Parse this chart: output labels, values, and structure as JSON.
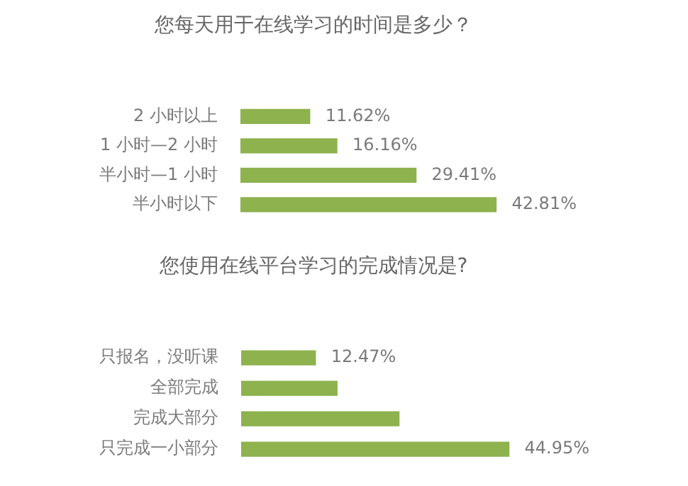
{
  "chart_data": [
    {
      "type": "bar",
      "orientation": "horizontal",
      "title": "您每天用于在线学习的时间是多少？",
      "categories": [
        "2 小时以上",
        "1 小时—2 小时",
        "半小时—1 小时",
        "半小时以下"
      ],
      "values": [
        11.62,
        16.16,
        29.41,
        42.81
      ],
      "color": "#8db24e",
      "value_labels": [
        "11.62%",
        "16.16%",
        "29.41%",
        "42.81%"
      ],
      "tick_labels": "y",
      "grid": false,
      "legend": false
    },
    {
      "type": "bar",
      "orientation": "horizontal",
      "title": "您使用在线平台学习的完成情况是?",
      "categories": [
        "只报名，没听课",
        "全部完成",
        "完成大部分",
        "只完成一小部分"
      ],
      "values": [
        12.47,
        16.1,
        26.5,
        44.95
      ],
      "color": "#8db24e",
      "value_labels": [
        "12.47%",
        null,
        null,
        "44.95%"
      ],
      "tick_labels": "y",
      "grid": false,
      "legend": false
    }
  ]
}
